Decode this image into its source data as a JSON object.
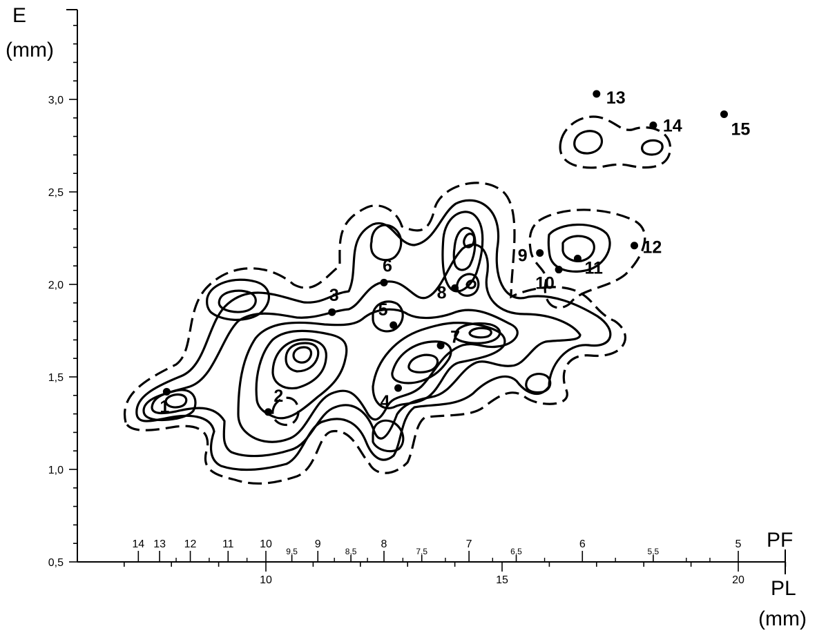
{
  "chart_data": {
    "type": "scatter",
    "title": "",
    "ylabel": [
      "E",
      "(mm)"
    ],
    "xlabel_bottom": [
      "PL",
      "(mm)"
    ],
    "xlabel_top": "PF",
    "ylim": [
      0.5,
      3.5
    ],
    "xlim": [
      6,
      21
    ],
    "y_ticks": [
      {
        "value": 0.5,
        "label": "0,5"
      },
      {
        "value": 1.0,
        "label": "1,0"
      },
      {
        "value": 1.5,
        "label": "1,5"
      },
      {
        "value": 2.0,
        "label": "2,0"
      },
      {
        "value": 2.5,
        "label": "2,5"
      },
      {
        "value": 3.0,
        "label": "3,0"
      }
    ],
    "x_ticks_pl": [
      {
        "value": 10,
        "label": "10"
      },
      {
        "value": 15,
        "label": "15"
      },
      {
        "value": 20,
        "label": "20"
      }
    ],
    "x_ticks_pf": [
      {
        "pl": 7.3,
        "label": "14",
        "small": false
      },
      {
        "pl": 7.75,
        "label": "13",
        "small": false
      },
      {
        "pl": 8.4,
        "label": "12",
        "small": false
      },
      {
        "pl": 9.2,
        "label": "11",
        "small": false
      },
      {
        "pl": 10.0,
        "label": "10",
        "small": false
      },
      {
        "pl": 10.55,
        "label": "9,5",
        "small": true
      },
      {
        "pl": 11.1,
        "label": "9",
        "small": false
      },
      {
        "pl": 11.8,
        "label": "8,5",
        "small": true
      },
      {
        "pl": 12.5,
        "label": "8",
        "small": false
      },
      {
        "pl": 13.3,
        "label": "7,5",
        "small": true
      },
      {
        "pl": 14.3,
        "label": "7",
        "small": false
      },
      {
        "pl": 15.3,
        "label": "6,5",
        "small": true
      },
      {
        "pl": 16.7,
        "label": "6",
        "small": false
      },
      {
        "pl": 18.2,
        "label": "5,5",
        "small": true
      },
      {
        "pl": 20.0,
        "label": "5",
        "small": false
      }
    ],
    "points": [
      {
        "label": "1",
        "x": 7.9,
        "y": 1.42
      },
      {
        "label": "2",
        "x": 10.05,
        "y": 1.31
      },
      {
        "label": "3",
        "x": 11.4,
        "y": 1.85
      },
      {
        "label": "4",
        "x": 12.8,
        "y": 1.44
      },
      {
        "label": "5",
        "x": 12.7,
        "y": 1.78
      },
      {
        "label": "6",
        "x": 12.5,
        "y": 2.01
      },
      {
        "label": "7",
        "x": 13.7,
        "y": 1.67
      },
      {
        "label": "8",
        "x": 14.0,
        "y": 1.98
      },
      {
        "label": "9",
        "x": 15.8,
        "y": 2.17
      },
      {
        "label": "10",
        "x": 16.2,
        "y": 2.08
      },
      {
        "label": "11",
        "x": 16.6,
        "y": 2.14
      },
      {
        "label": "12",
        "x": 17.8,
        "y": 2.21
      },
      {
        "label": "13",
        "x": 17.0,
        "y": 3.03
      },
      {
        "label": "14",
        "x": 18.2,
        "y": 2.86
      },
      {
        "label": "15",
        "x": 19.7,
        "y": 2.92
      }
    ]
  }
}
